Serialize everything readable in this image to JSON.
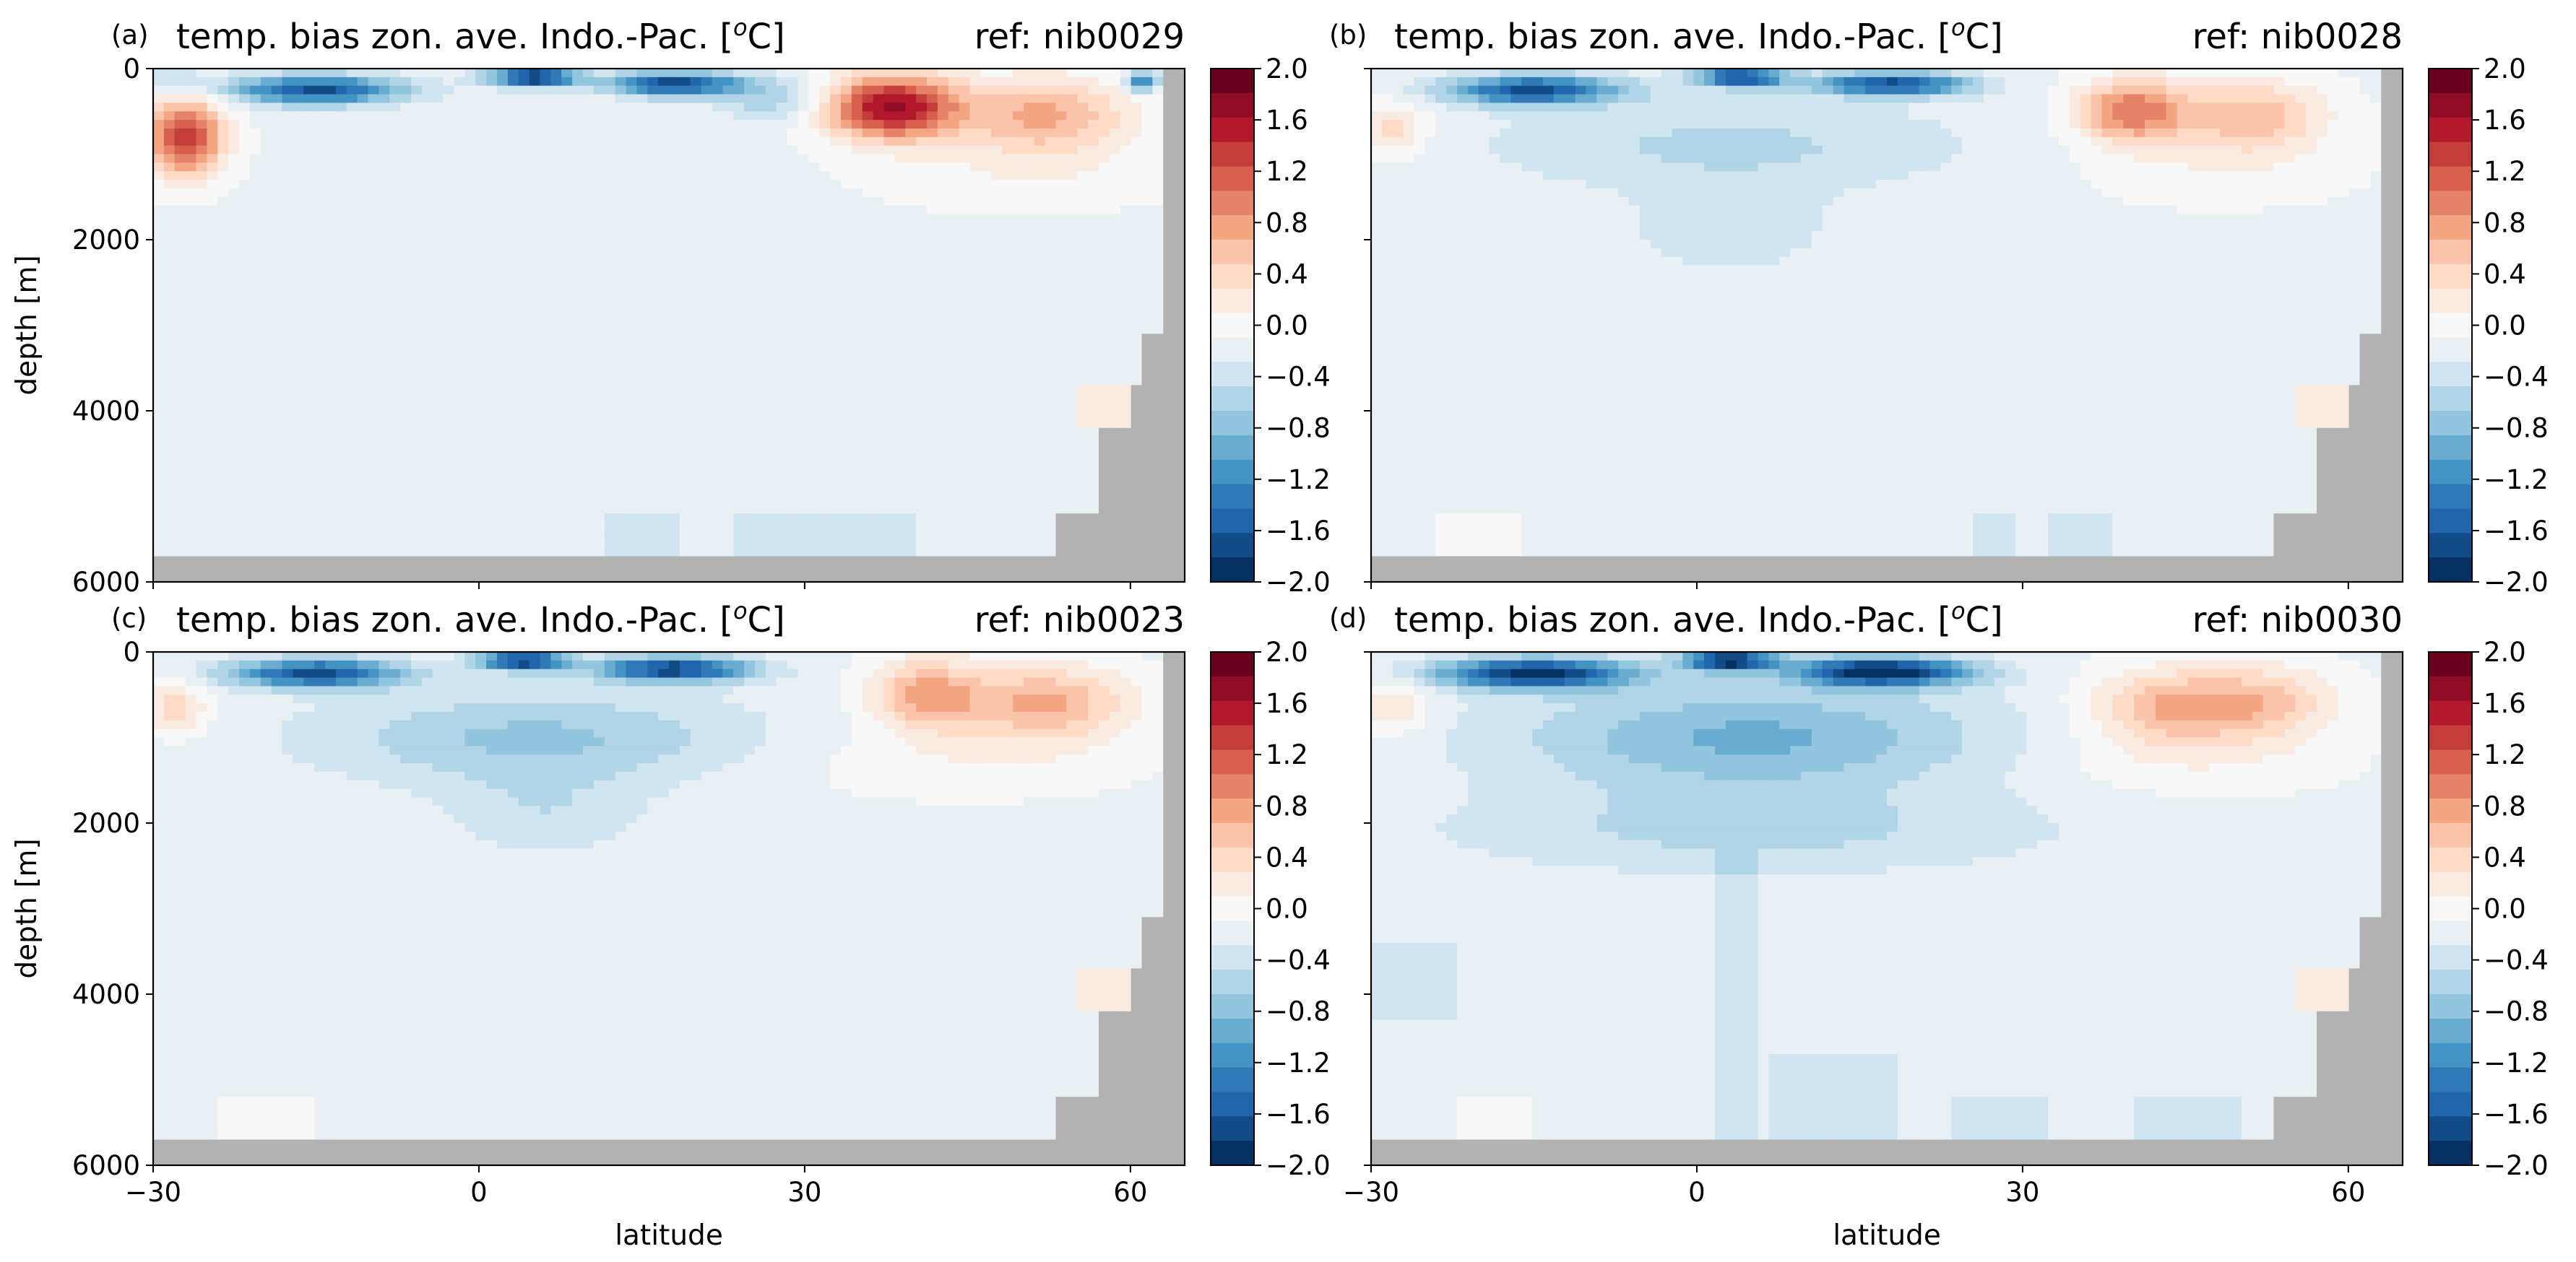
{
  "figure": {
    "shared_colorbar": {
      "ticks": [
        "2.0",
        "1.6",
        "1.2",
        "0.8",
        "0.4",
        "0.0",
        "−0.4",
        "−0.8",
        "−1.2",
        "−1.6",
        "−2.0"
      ],
      "colors": [
        "#67001f",
        "#8e0c25",
        "#b2182b",
        "#c43c3c",
        "#d6604d",
        "#e58368",
        "#f4a582",
        "#f9c4a9",
        "#fddbc7",
        "#f9ebe2",
        "#f7f7f7",
        "#e9f0f4",
        "#d1e5f0",
        "#b1d5e7",
        "#92c5de",
        "#6aacd0",
        "#4393c3",
        "#3079b6",
        "#2166ac",
        "#134b87",
        "#053061"
      ]
    }
  },
  "chart_data": [
    {
      "type": "heatmap",
      "panel_label": "(a)",
      "title": "temp. bias zon. ave. Indo.-Pac. [°C]",
      "title_prefix": "temp. bias zon. ave. Indo.-Pac. [",
      "title_sup": "o",
      "title_suffix": "C]",
      "ref": "ref: nib0029",
      "xlabel": "",
      "ylabel": "depth [m]",
      "xlim": [
        -30,
        65
      ],
      "ylim": [
        6000,
        0
      ],
      "xticks": [
        "",
        "",
        "",
        ""
      ],
      "yticks": [
        "0",
        "2000",
        "4000",
        "6000"
      ],
      "colorbar": {
        "min": -2.0,
        "max": 2.0,
        "step": 0.2
      },
      "land_color": "#b2b2b2",
      "features": [
        {
          "kind": "background",
          "value": -0.05
        },
        {
          "kind": "blob",
          "lat": -27,
          "depth": 800,
          "rlat": 3.5,
          "rdepth": 450,
          "value": 1.6
        },
        {
          "kind": "blob",
          "lat": -28,
          "depth": 150,
          "rlat": 3,
          "rdepth": 150,
          "value": -0.4
        },
        {
          "kind": "blob",
          "lat": -15,
          "depth": 250,
          "rlat": 8,
          "rdepth": 170,
          "value": -1.6
        },
        {
          "kind": "blob",
          "lat": 5,
          "depth": 100,
          "rlat": 4,
          "rdepth": 110,
          "value": -1.9
        },
        {
          "kind": "blob",
          "lat": 18,
          "depth": 180,
          "rlat": 6,
          "rdepth": 140,
          "value": -1.7
        },
        {
          "kind": "blob",
          "lat": 27,
          "depth": 350,
          "rlat": 5,
          "rdepth": 250,
          "value": -0.5
        },
        {
          "kind": "blob",
          "lat": 38,
          "depth": 450,
          "rlat": 6,
          "rdepth": 380,
          "value": 1.9
        },
        {
          "kind": "blob",
          "lat": 52,
          "depth": 550,
          "rlat": 8,
          "rdepth": 450,
          "value": 0.9
        },
        {
          "kind": "blob",
          "lat": 50,
          "depth": 1250,
          "rlat": 14,
          "rdepth": 400,
          "value": 0.2
        },
        {
          "kind": "blob",
          "lat": 61,
          "depth": 150,
          "rlat": 1.5,
          "rdepth": 120,
          "value": -1.2
        },
        {
          "kind": "box",
          "lat0": 55,
          "lat1": 60,
          "d0": 3700,
          "d1": 4200,
          "value": 0.3
        },
        {
          "kind": "box",
          "lat0": 12,
          "lat1": 18,
          "d0": 5250,
          "d1": 5750,
          "value": -0.2
        },
        {
          "kind": "box",
          "lat0": 23,
          "lat1": 40,
          "d0": 5250,
          "d1": 5750,
          "value": -0.2
        }
      ]
    },
    {
      "type": "heatmap",
      "panel_label": "(b)",
      "title": "temp. bias zon. ave. Indo.-Pac. [°C]",
      "title_prefix": "temp. bias zon. ave. Indo.-Pac. [",
      "title_sup": "o",
      "title_suffix": "C]",
      "ref": "ref: nib0028",
      "xlabel": "",
      "ylabel": "",
      "xlim": [
        -30,
        65
      ],
      "ylim": [
        6000,
        0
      ],
      "xticks": [
        "",
        "",
        "",
        ""
      ],
      "yticks": [
        "",
        "",
        "",
        ""
      ],
      "colorbar": {
        "min": -2.0,
        "max": 2.0,
        "step": 0.2
      },
      "land_color": "#b2b2b2",
      "features": [
        {
          "kind": "background",
          "value": -0.05
        },
        {
          "kind": "blob",
          "lat": -28,
          "depth": 700,
          "rlat": 3,
          "rdepth": 300,
          "value": 0.6
        },
        {
          "kind": "blob",
          "lat": -15,
          "depth": 250,
          "rlat": 8,
          "rdepth": 170,
          "value": -1.6
        },
        {
          "kind": "blob",
          "lat": 4,
          "depth": 100,
          "rlat": 4,
          "rdepth": 110,
          "value": -1.7
        },
        {
          "kind": "blob",
          "lat": 18,
          "depth": 180,
          "rlat": 7,
          "rdepth": 140,
          "value": -1.6
        },
        {
          "kind": "blob",
          "lat": 3,
          "depth": 900,
          "rlat": 22,
          "rdepth": 550,
          "value": -0.4
        },
        {
          "kind": "blob",
          "lat": 3,
          "depth": 1900,
          "rlat": 9,
          "rdepth": 500,
          "value": -0.3
        },
        {
          "kind": "blob",
          "lat": 40,
          "depth": 500,
          "rlat": 5,
          "rdepth": 380,
          "value": 1.2
        },
        {
          "kind": "blob",
          "lat": 51,
          "depth": 550,
          "rlat": 7,
          "rdepth": 420,
          "value": 0.8
        },
        {
          "kind": "blob",
          "lat": 48,
          "depth": 1200,
          "rlat": 12,
          "rdepth": 400,
          "value": 0.2
        },
        {
          "kind": "box",
          "lat0": 55,
          "lat1": 60,
          "d0": 3700,
          "d1": 4200,
          "value": 0.3
        },
        {
          "kind": "box",
          "lat0": -24,
          "lat1": -16,
          "d0": 5200,
          "d1": 5750,
          "value": 0.2
        },
        {
          "kind": "box",
          "lat0": 25,
          "lat1": 29,
          "d0": 5200,
          "d1": 5750,
          "value": -0.2
        },
        {
          "kind": "box",
          "lat0": 32,
          "lat1": 38,
          "d0": 5200,
          "d1": 5750,
          "value": -0.2
        }
      ]
    },
    {
      "type": "heatmap",
      "panel_label": "(c)",
      "title": "temp. bias zon. ave. Indo.-Pac. [°C]",
      "title_prefix": "temp. bias zon. ave. Indo.-Pac. [",
      "title_sup": "o",
      "title_suffix": "C]",
      "ref": "ref: nib0023",
      "xlabel": "latitude",
      "ylabel": "depth [m]",
      "xlim": [
        -30,
        65
      ],
      "ylim": [
        6000,
        0
      ],
      "xticks": [
        "−30",
        "0",
        "30",
        "60"
      ],
      "yticks": [
        "0",
        "2000",
        "4000",
        "6000"
      ],
      "colorbar": {
        "min": -2.0,
        "max": 2.0,
        "step": 0.2
      },
      "land_color": "#b2b2b2",
      "features": [
        {
          "kind": "background",
          "value": -0.05
        },
        {
          "kind": "blob",
          "lat": -28,
          "depth": 650,
          "rlat": 3,
          "rdepth": 300,
          "value": 0.6
        },
        {
          "kind": "blob",
          "lat": -15,
          "depth": 250,
          "rlat": 8,
          "rdepth": 170,
          "value": -1.6
        },
        {
          "kind": "blob",
          "lat": 4,
          "depth": 100,
          "rlat": 4,
          "rdepth": 110,
          "value": -1.8
        },
        {
          "kind": "blob",
          "lat": 18,
          "depth": 200,
          "rlat": 7,
          "rdepth": 150,
          "value": -1.7
        },
        {
          "kind": "blob",
          "lat": 5,
          "depth": 1000,
          "rlat": 20,
          "rdepth": 550,
          "value": -0.6
        },
        {
          "kind": "blob",
          "lat": 6,
          "depth": 1900,
          "rlat": 9,
          "rdepth": 500,
          "value": -0.3
        },
        {
          "kind": "blob",
          "lat": 41,
          "depth": 500,
          "rlat": 5,
          "rdepth": 420,
          "value": 0.9
        },
        {
          "kind": "blob",
          "lat": 52,
          "depth": 600,
          "rlat": 8,
          "rdepth": 450,
          "value": 0.9
        },
        {
          "kind": "blob",
          "lat": 44,
          "depth": 1300,
          "rlat": 16,
          "rdepth": 400,
          "value": 0.2
        },
        {
          "kind": "box",
          "lat0": 55,
          "lat1": 60,
          "d0": 3700,
          "d1": 4200,
          "value": 0.3
        },
        {
          "kind": "box",
          "lat0": -24,
          "lat1": -15,
          "d0": 5200,
          "d1": 5750,
          "value": 0.2
        }
      ]
    },
    {
      "type": "heatmap",
      "panel_label": "(d)",
      "title": "temp. bias zon. ave. Indo.-Pac. [°C]",
      "title_prefix": "temp. bias zon. ave. Indo.-Pac. [",
      "title_sup": "o",
      "title_suffix": "C]",
      "ref": "ref: nib0030",
      "xlabel": "latitude",
      "ylabel": "",
      "xlim": [
        -30,
        65
      ],
      "ylim": [
        6000,
        0
      ],
      "xticks": [
        "−30",
        "0",
        "30",
        "60"
      ],
      "yticks": [
        "",
        "",
        "",
        ""
      ],
      "colorbar": {
        "min": -2.0,
        "max": 2.0,
        "step": 0.2
      },
      "land_color": "#b2b2b2",
      "features": [
        {
          "kind": "background",
          "value": -0.05
        },
        {
          "kind": "blob",
          "lat": -28,
          "depth": 650,
          "rlat": 3,
          "rdepth": 300,
          "value": 0.5
        },
        {
          "kind": "blob",
          "lat": -15,
          "depth": 250,
          "rlat": 9,
          "rdepth": 180,
          "value": -1.8
        },
        {
          "kind": "blob",
          "lat": 3,
          "depth": 100,
          "rlat": 4,
          "rdepth": 110,
          "value": -1.9
        },
        {
          "kind": "blob",
          "lat": 17,
          "depth": 230,
          "rlat": 8,
          "rdepth": 170,
          "value": -1.9
        },
        {
          "kind": "blob",
          "lat": 5,
          "depth": 1000,
          "rlat": 22,
          "rdepth": 650,
          "value": -0.8
        },
        {
          "kind": "blob",
          "lat": 5,
          "depth": 2100,
          "rlat": 28,
          "rdepth": 500,
          "value": -0.4
        },
        {
          "kind": "box",
          "lat0": 2,
          "lat1": 6,
          "d0": 2300,
          "d1": 5750,
          "value": -0.2
        },
        {
          "kind": "box",
          "lat0": -30,
          "lat1": -22,
          "d0": 3400,
          "d1": 4300,
          "value": -0.2
        },
        {
          "kind": "blob",
          "lat": 43,
          "depth": 650,
          "rlat": 7,
          "rdepth": 450,
          "value": 0.8
        },
        {
          "kind": "blob",
          "lat": 52,
          "depth": 600,
          "rlat": 7,
          "rdepth": 450,
          "value": 0.7
        },
        {
          "kind": "blob",
          "lat": 45,
          "depth": 1300,
          "rlat": 14,
          "rdepth": 400,
          "value": 0.2
        },
        {
          "kind": "box",
          "lat0": 55,
          "lat1": 60,
          "d0": 3700,
          "d1": 4200,
          "value": 0.3
        },
        {
          "kind": "box",
          "lat0": -22,
          "lat1": -15,
          "d0": 5200,
          "d1": 5750,
          "value": 0.2
        },
        {
          "kind": "box",
          "lat0": 7,
          "lat1": 18,
          "d0": 4700,
          "d1": 5750,
          "value": -0.2
        },
        {
          "kind": "box",
          "lat0": 23,
          "lat1": 32,
          "d0": 5200,
          "d1": 5750,
          "value": -0.2
        },
        {
          "kind": "box",
          "lat0": 40,
          "lat1": 50,
          "d0": 5200,
          "d1": 5750,
          "value": -0.2
        }
      ]
    }
  ]
}
